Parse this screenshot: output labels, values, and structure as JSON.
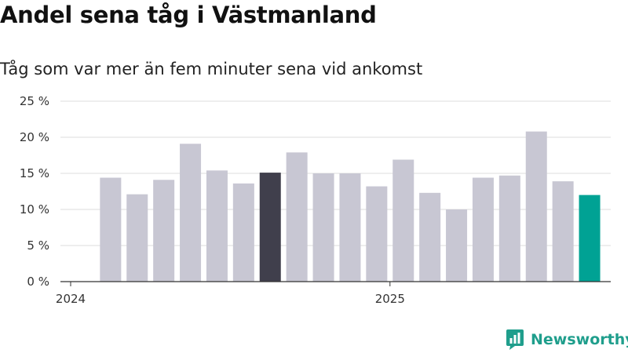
{
  "title": "Andel sena tåg i Västmanland",
  "subtitle": "Tåg som var mer än fem minuter sena vid ankomst",
  "brand": {
    "name": "Newsworthy",
    "icon": "newsworthy-logo-icon",
    "color": "#1f9e8c"
  },
  "colors": {
    "default": "#c8c7d3",
    "highlight_dark": "#403f4c",
    "highlight_latest": "#00a294",
    "grid": "#dddddd",
    "axis": "#333333"
  },
  "chart_data": {
    "type": "bar",
    "title": "Andel sena tåg i Västmanland",
    "subtitle": "Tåg som var mer än fem minuter sena vid ankomst",
    "xlabel": "",
    "ylabel": "",
    "ylim": [
      0,
      25
    ],
    "yticks": [
      0,
      5,
      10,
      15,
      20,
      25
    ],
    "ytick_labels": [
      "0 %",
      "5 %",
      "10 %",
      "15 %",
      "20 %",
      "25 %"
    ],
    "xtick_labels": [
      {
        "label": "2024",
        "index": 0
      },
      {
        "label": "2025",
        "index": 12
      }
    ],
    "categories": [
      "2024-01",
      "2024-02",
      "2024-03",
      "2024-04",
      "2024-05",
      "2024-06",
      "2024-07",
      "2024-08",
      "2024-09",
      "2024-10",
      "2024-11",
      "2024-12",
      "2025-01",
      "2025-02",
      "2025-03",
      "2025-04",
      "2025-05",
      "2025-06",
      "2025-07",
      "2025-08"
    ],
    "values": [
      null,
      14.4,
      12.1,
      14.1,
      19.1,
      15.4,
      13.6,
      15.1,
      17.9,
      15.0,
      15.0,
      13.2,
      16.9,
      12.3,
      10.0,
      14.4,
      14.7,
      20.8,
      13.9,
      12.0
    ],
    "highlight": {
      "7": "highlight_dark",
      "19": "highlight_latest"
    },
    "grid": true,
    "legend": "none"
  }
}
